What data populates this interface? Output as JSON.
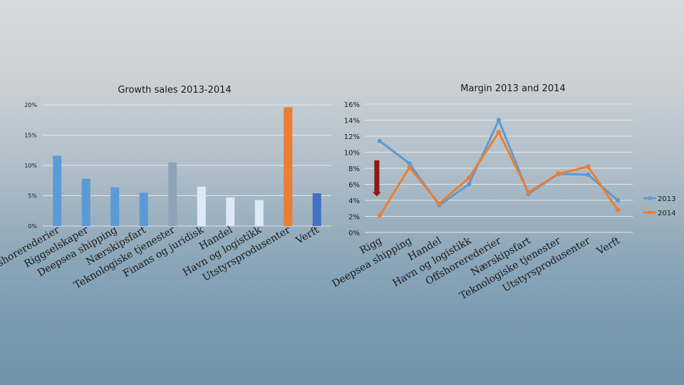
{
  "chart_data": [
    {
      "type": "bar",
      "title": "Growth sales 2013-2014",
      "ylim": [
        0,
        20
      ],
      "yticks": [
        "0%",
        "5%",
        "10%",
        "15%",
        "20%"
      ],
      "grid": true,
      "categories": [
        "Offshorerederier",
        "Riggselskaper",
        "Deepsea shipping",
        "Nærskipsfart",
        "Teknologiske tjenester",
        "Finans og juridisk",
        "Handel",
        "Havn og logistikk",
        "Utstyrsprodusenter",
        "Verft"
      ],
      "values": [
        11.6,
        7.8,
        6.4,
        5.5,
        10.5,
        6.5,
        4.7,
        4.3,
        19.6,
        5.4
      ],
      "colors": [
        "#5b9bd5",
        "#5b9bd5",
        "#5b9bd5",
        "#5b9bd5",
        "#8ea2b8",
        "#dde9f5",
        "#dde9f5",
        "#dde9f5",
        "#ed7d31",
        "#4472c4"
      ]
    },
    {
      "type": "line",
      "title": "Margin 2013 and 2014",
      "ylim": [
        0,
        16
      ],
      "yticks": [
        "0%",
        "2%",
        "4%",
        "6%",
        "8%",
        "10%",
        "12%",
        "14%",
        "16%"
      ],
      "grid": true,
      "legend_position": "right",
      "categories": [
        "Rigg",
        "Deepsea shipping",
        "Handel",
        "Havn og logistikk",
        "Offshorerederier",
        "Nærskipsfart",
        "Teknologiske tjenester",
        "Utstyrsprodusenter",
        "Verft"
      ],
      "series": [
        {
          "name": "2013",
          "color": "#5b9bd5",
          "values": [
            11.4,
            8.6,
            3.4,
            6.0,
            14.0,
            4.8,
            7.3,
            7.2,
            4.0
          ]
        },
        {
          "name": "2014",
          "color": "#ed7d31",
          "values": [
            2.1,
            8.1,
            3.6,
            6.8,
            12.5,
            5.0,
            7.3,
            8.2,
            2.8
          ]
        }
      ],
      "annotation": {
        "type": "down-arrow",
        "color": "#8b1a1a",
        "x_category": "Rigg",
        "from": 9.0,
        "to": 4.5
      }
    }
  ]
}
